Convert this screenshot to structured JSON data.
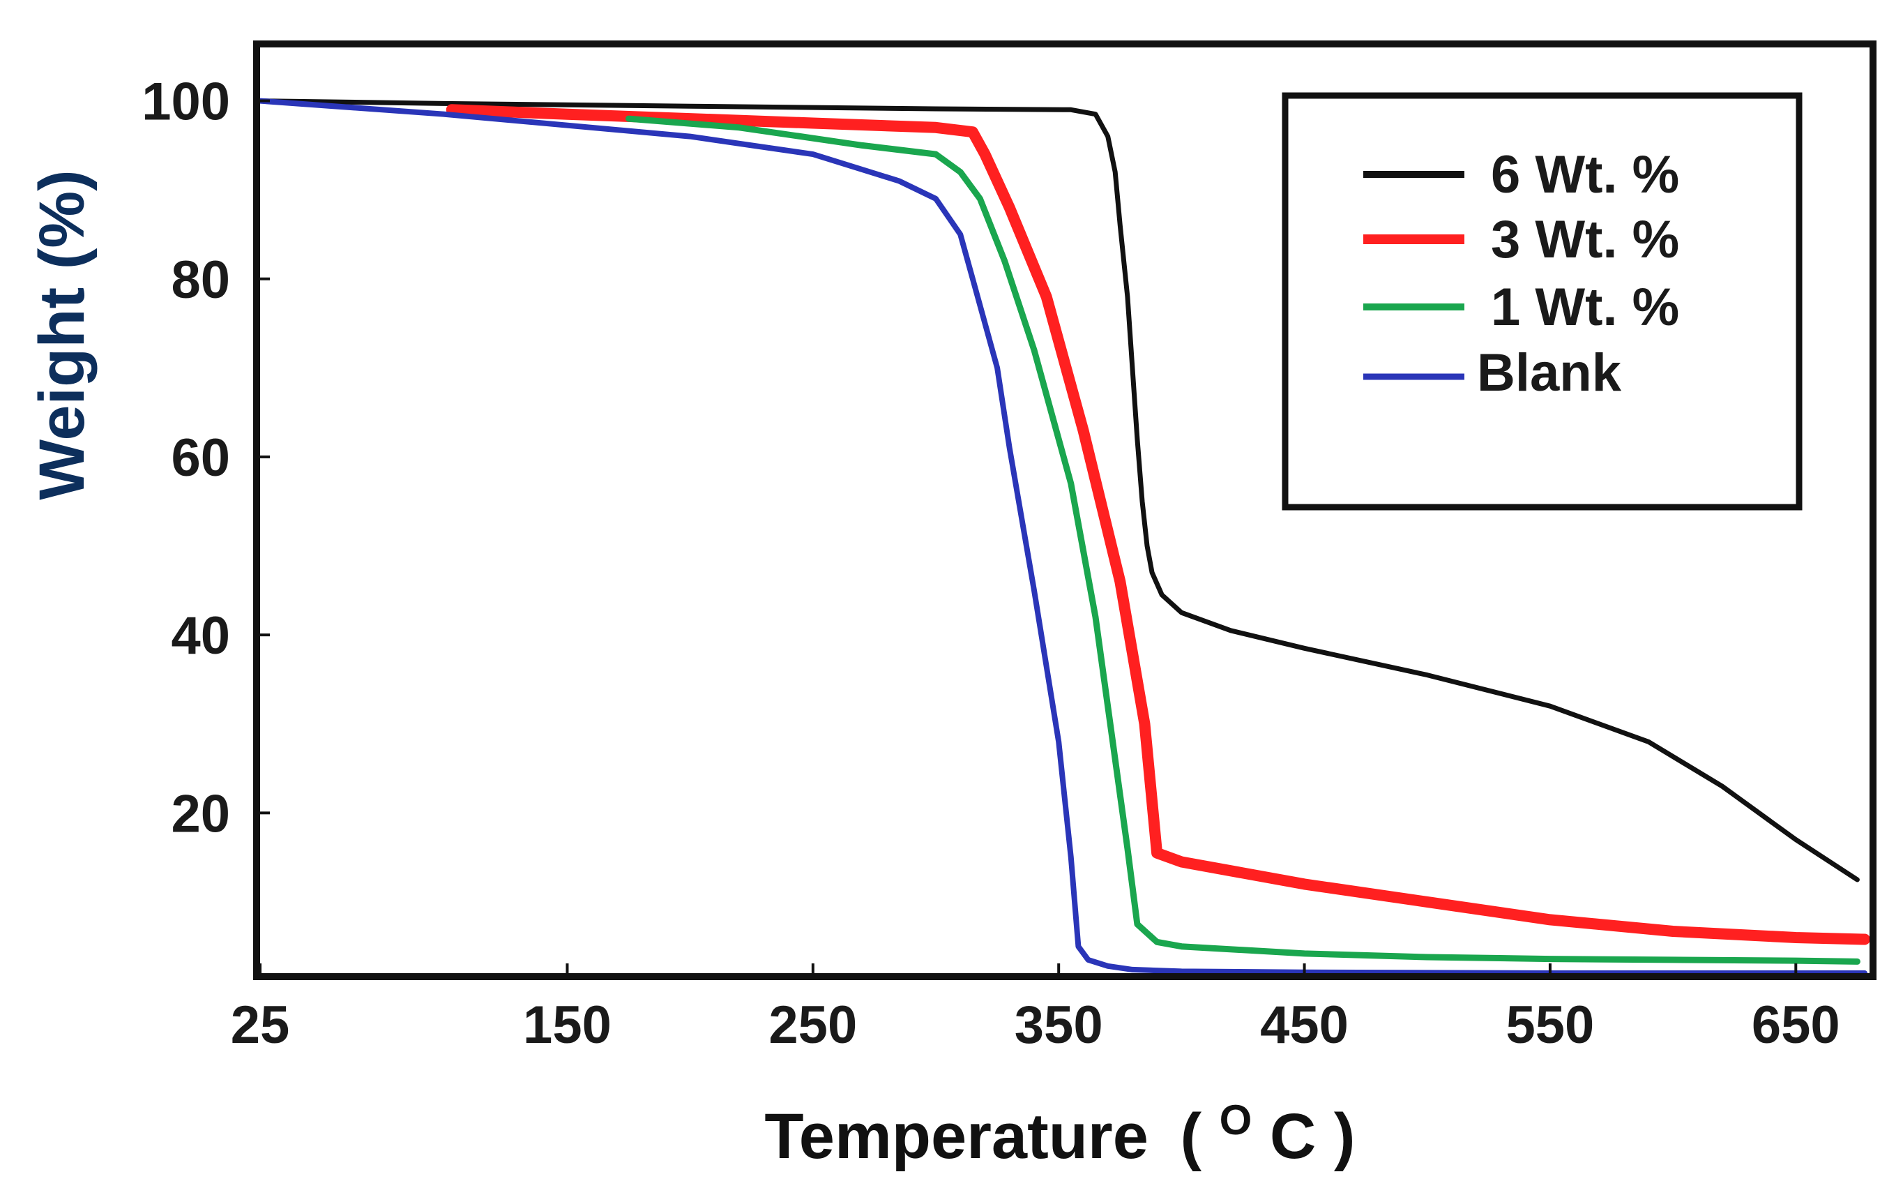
{
  "chart_data": {
    "type": "line",
    "title": "",
    "xlabel": "Temperature",
    "xlabel_unit_open": "(",
    "xlabel_unit_sup": "O",
    "xlabel_unit_main": "C",
    "xlabel_unit_close": ")",
    "ylabel": "Weight (%)",
    "xlim": [
      25,
      680
    ],
    "ylim": [
      2,
      106
    ],
    "x_ticks": [
      25,
      150,
      250,
      350,
      450,
      550,
      650
    ],
    "y_ticks": [
      100,
      80,
      60,
      40,
      20
    ],
    "grid": false,
    "legend_position": "top-right",
    "series": [
      {
        "name": "6 Wt. %",
        "color": "#111111",
        "x": [
          25,
          100,
          200,
          300,
          355,
          365,
          370,
          373,
          375,
          378,
          380,
          382,
          384,
          386,
          388,
          392,
          400,
          420,
          450,
          500,
          550,
          590,
          620,
          650,
          675
        ],
        "y": [
          100,
          99.7,
          99.4,
          99.1,
          99,
          98.5,
          96,
          92,
          86,
          78,
          70,
          62,
          55,
          50,
          47,
          44.5,
          42.5,
          40.5,
          38.5,
          35.5,
          32,
          28,
          23,
          17,
          12.5
        ]
      },
      {
        "name": "3 Wt. %",
        "color": "#ff2020",
        "x": [
          103,
          150,
          200,
          250,
          300,
          315,
          320,
          330,
          345,
          360,
          375,
          385,
          390,
          400,
          450,
          500,
          550,
          600,
          650,
          678
        ],
        "y": [
          99,
          98.5,
          98,
          97.5,
          97,
          96.5,
          94,
          88,
          78,
          63,
          46,
          30,
          15.5,
          14.5,
          12,
          10,
          8,
          6.7,
          6,
          5.8
        ]
      },
      {
        "name": "1 Wt. %",
        "color": "#1aa64e",
        "x": [
          175,
          220,
          270,
          300,
          310,
          318,
          328,
          340,
          355,
          365,
          372,
          378,
          382,
          390,
          400,
          450,
          500,
          550,
          600,
          650,
          675
        ],
        "y": [
          98,
          97,
          95,
          94,
          92,
          89,
          82,
          72,
          57,
          42,
          28,
          16,
          7.5,
          5.5,
          5,
          4.2,
          3.8,
          3.6,
          3.5,
          3.4,
          3.3
        ]
      },
      {
        "name": "Blank",
        "color": "#2a35b8",
        "x": [
          25,
          100,
          200,
          250,
          285,
          300,
          310,
          315,
          325,
          330,
          340,
          350,
          355,
          358,
          362,
          370,
          380,
          400,
          450,
          550,
          650,
          678
        ],
        "y": [
          100,
          98.5,
          96,
          94,
          91,
          89,
          85,
          80,
          70,
          61,
          45,
          28,
          15,
          5,
          3.5,
          2.8,
          2.4,
          2.2,
          2.1,
          2,
          2,
          2
        ]
      }
    ]
  },
  "legend": {
    "items": [
      "6 Wt. %",
      "3 Wt. %",
      "1 Wt. %",
      "Blank"
    ]
  },
  "colors": {
    "ylabel": "#0d2f5c",
    "xlabel": "#111111",
    "frame": "#111111"
  }
}
